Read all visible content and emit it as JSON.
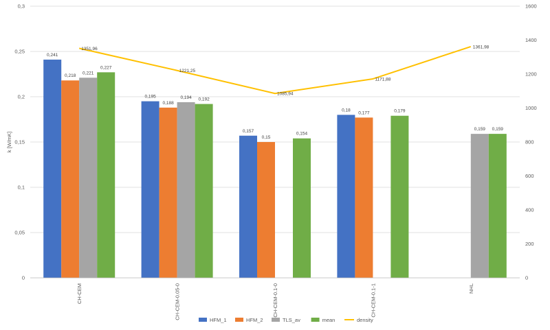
{
  "chart_data": {
    "type": "bar",
    "categories": [
      "CH-CEM",
      "CH-CEM-0.05-0",
      "CH-CEM-0.1-0",
      "CH-CEM-0.1-1",
      "NHL"
    ],
    "series": [
      {
        "name": "HFM_1",
        "color": "#4472C4",
        "values": [
          0.241,
          0.195,
          0.157,
          0.18,
          null
        ],
        "labels": [
          "0,241",
          "0,195",
          "0,157",
          "0,18",
          ""
        ]
      },
      {
        "name": "HFM_2",
        "color": "#ED7D31",
        "values": [
          0.218,
          0.188,
          0.15,
          0.177,
          null
        ],
        "labels": [
          "0,218",
          "0,188",
          "0,15",
          "0,177",
          ""
        ]
      },
      {
        "name": "TLS_av",
        "color": "#A5A5A5",
        "values": [
          0.221,
          0.194,
          null,
          null,
          0.159
        ],
        "labels": [
          "0,221",
          "0,194",
          "",
          "",
          "0,159"
        ]
      },
      {
        "name": "mean",
        "color": "#70AD47",
        "values": [
          0.227,
          0.192,
          0.154,
          0.179,
          0.159
        ],
        "labels": [
          "0,227",
          "0,192",
          "0,154",
          "0,179",
          "0,159"
        ]
      }
    ],
    "line_series": {
      "name": "density",
      "color": "#FFC000",
      "axis": "secondary",
      "values": [
        1351.96,
        1221.25,
        1085.94,
        1171.88,
        1361.98
      ],
      "labels": [
        "1351,96",
        "1221,25",
        "1085,94",
        "1171,88",
        "1361,98"
      ]
    },
    "ylabel": "k [W/mK]",
    "ylim": [
      0,
      0.3
    ],
    "y_ticks": [
      "0",
      "0,05",
      "0,1",
      "0,15",
      "0,2",
      "0,25",
      "0,3"
    ],
    "y2lim": [
      0,
      1600
    ],
    "y2_ticks": [
      "0",
      "200",
      "400",
      "600",
      "800",
      "1000",
      "1200",
      "1400",
      "1600"
    ],
    "grid": true,
    "legend": "bottom"
  }
}
